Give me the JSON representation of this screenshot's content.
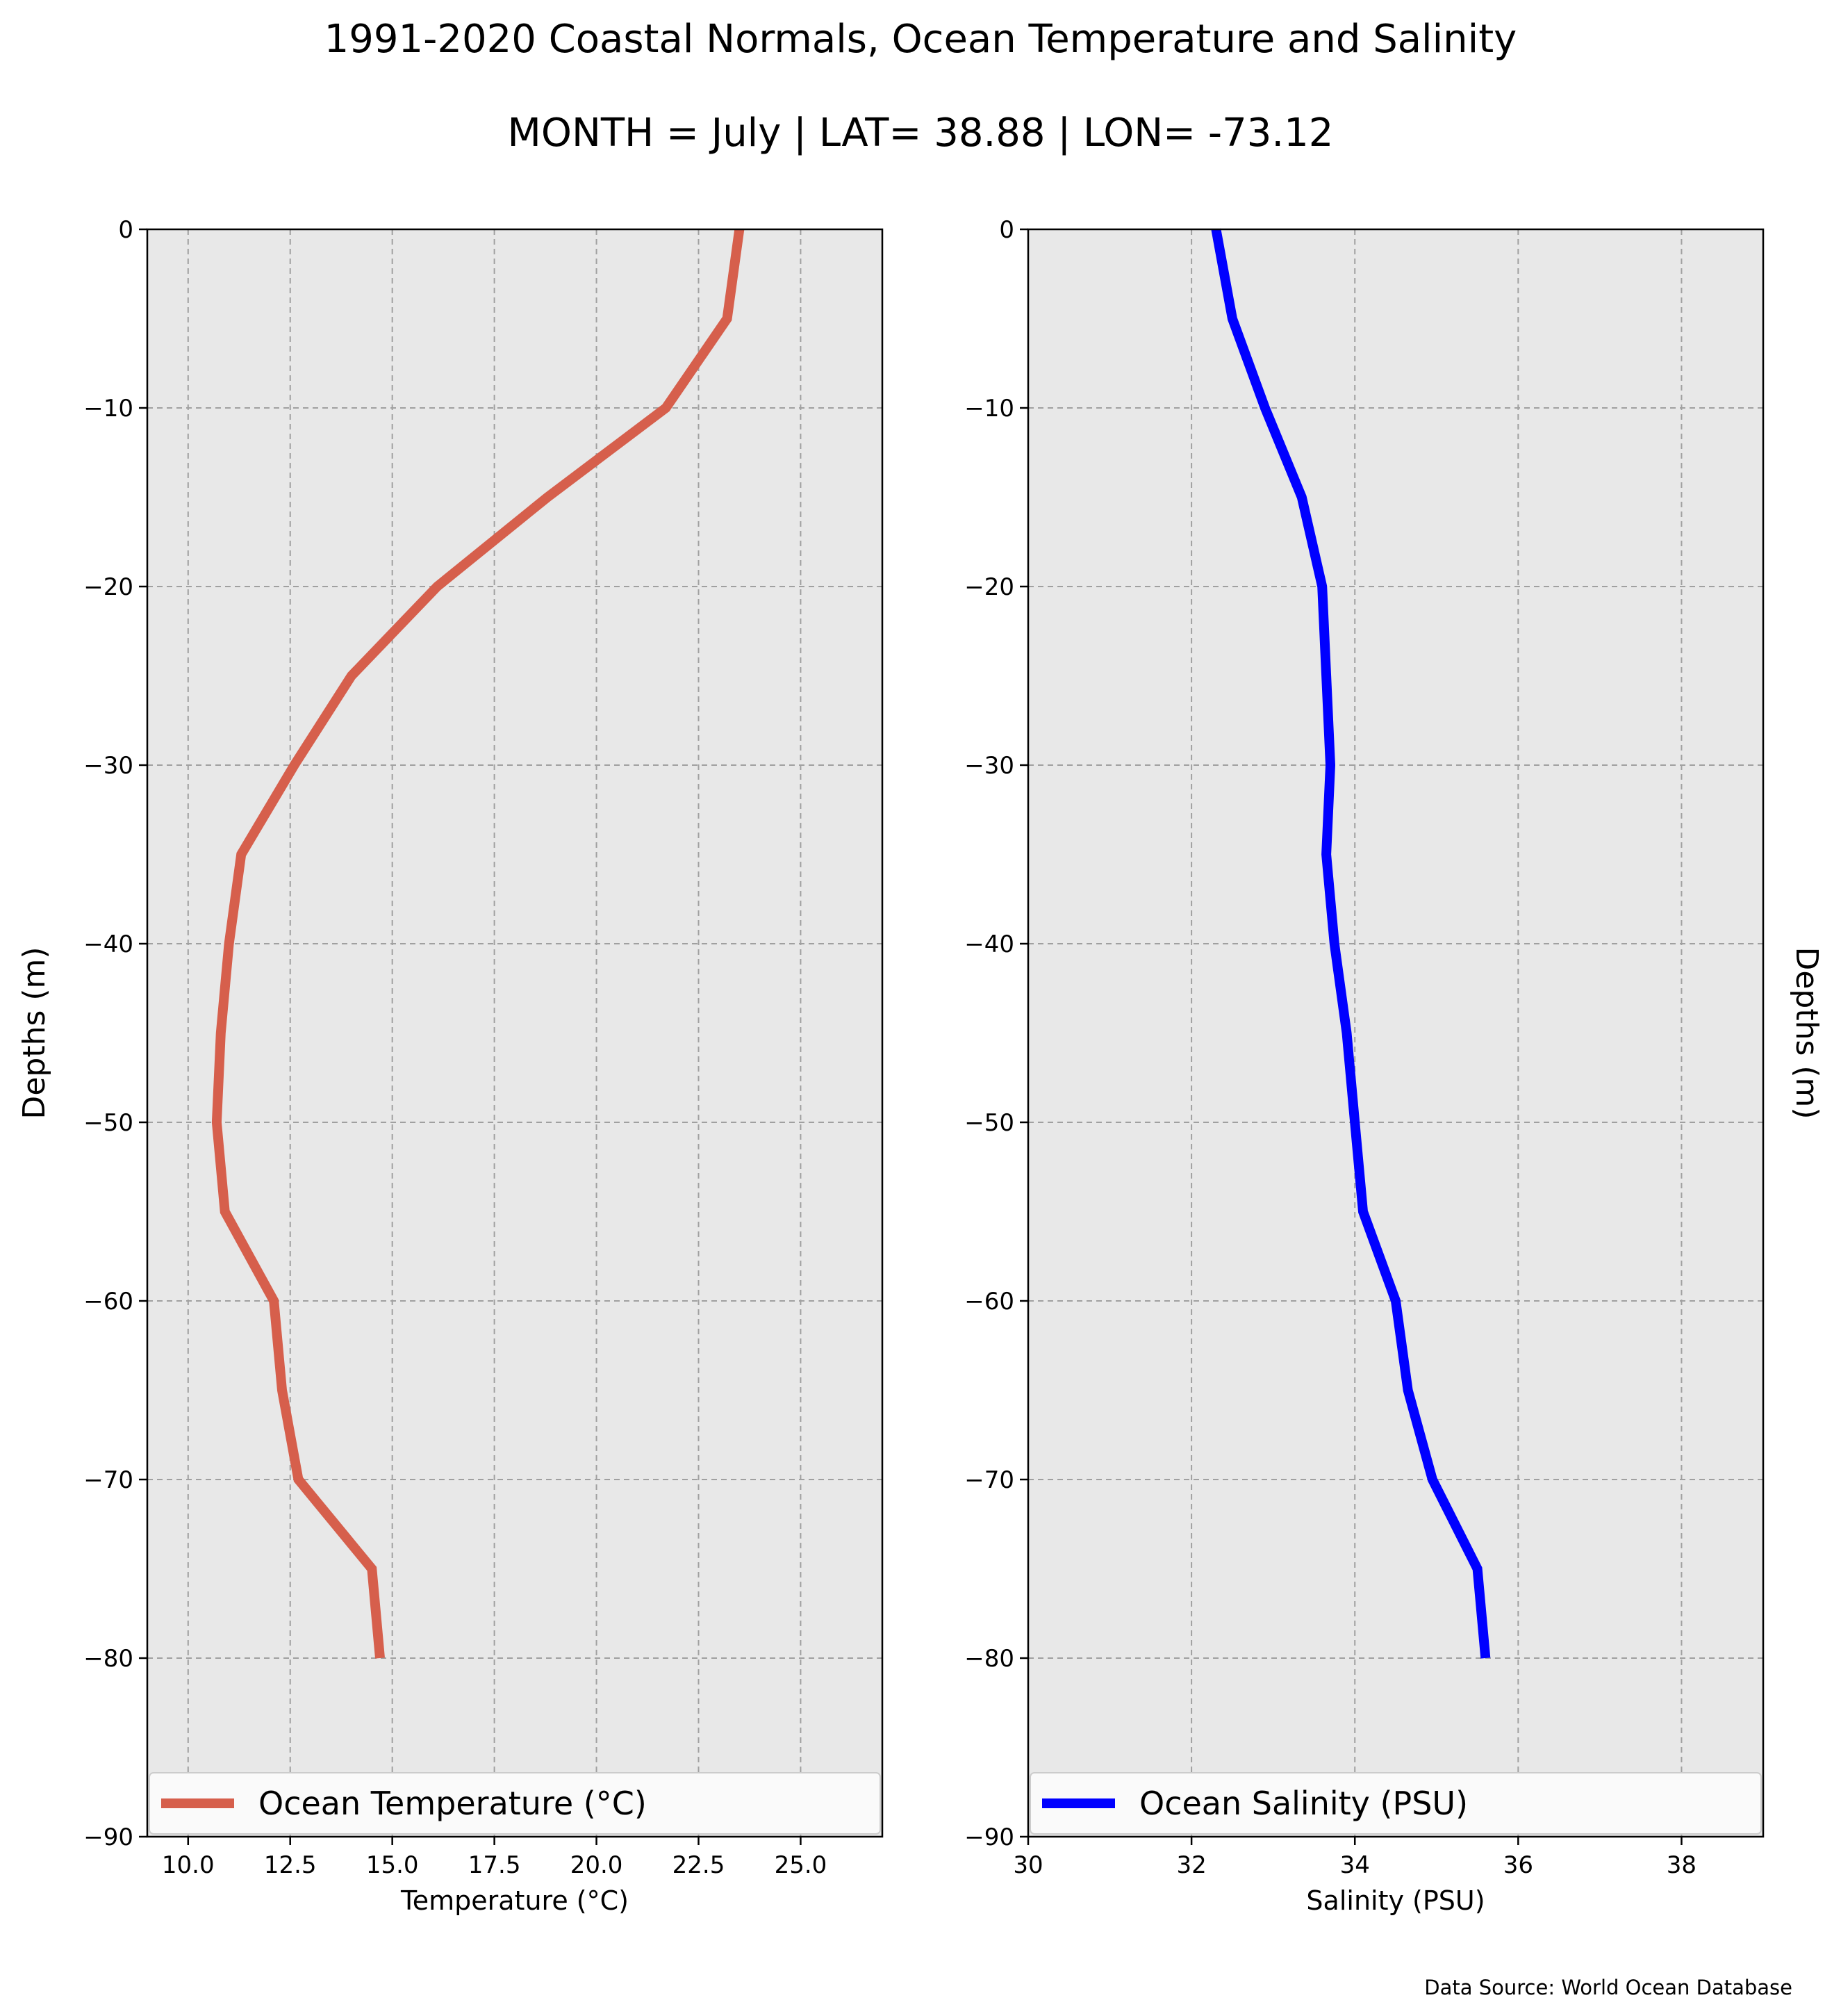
{
  "figure": {
    "title_line1": "1991-2020 Coastal Normals, Ocean Temperature and Salinity",
    "title_line2": "MONTH = July | LAT= 38.88 | LON= -73.12",
    "source_note": "Data Source: World Ocean Database",
    "background_color": "#e8e8e8"
  },
  "chart_data": [
    {
      "type": "line",
      "xlabel": "Temperature ($^\\circ$C)",
      "xlabel_display": "Temperature (°C)",
      "ylabel": "Depths (m)",
      "xlim": [
        9,
        27
      ],
      "ylim": [
        -90,
        0
      ],
      "x_ticks": [
        10.0,
        12.5,
        15.0,
        17.5,
        20.0,
        22.5,
        25.0
      ],
      "x_tick_labels": [
        "10.0",
        "12.5",
        "15.0",
        "17.5",
        "20.0",
        "22.5",
        "25.0"
      ],
      "y_ticks": [
        0,
        -10,
        -20,
        -30,
        -40,
        -50,
        -60,
        -70,
        -80,
        -90
      ],
      "y_tick_labels": [
        "0",
        "−10",
        "−20",
        "−30",
        "−40",
        "−50",
        "−60",
        "−70",
        "−80",
        "−90"
      ],
      "grid": true,
      "legend_position": "bottom",
      "series": [
        {
          "name": "Ocean Temperature ($^\\circ$C)",
          "name_display": "Ocean Temperature (°C)",
          "color": "#d65f4c",
          "x": [
            23.5,
            23.2,
            21.7,
            18.8,
            16.1,
            14.0,
            12.6,
            11.3,
            11.0,
            10.8,
            10.7,
            10.9,
            12.1,
            12.3,
            12.7,
            14.5,
            14.7
          ],
          "y": [
            0,
            -5,
            -10,
            -15,
            -20,
            -25,
            -30,
            -35,
            -40,
            -45,
            -50,
            -55,
            -60,
            -65,
            -70,
            -75,
            -80
          ]
        }
      ]
    },
    {
      "type": "line",
      "xlabel": "Salinity (PSU)",
      "ylabel": "Depths (m)",
      "xlim": [
        30,
        39
      ],
      "ylim": [
        -90,
        0
      ],
      "x_ticks": [
        30,
        32,
        34,
        36,
        38
      ],
      "x_tick_labels": [
        "30",
        "32",
        "34",
        "36",
        "38"
      ],
      "y_ticks": [
        0,
        -10,
        -20,
        -30,
        -40,
        -50,
        -60,
        -70,
        -80,
        -90
      ],
      "y_tick_labels": [
        "0",
        "−10",
        "−20",
        "−30",
        "−40",
        "−50",
        "−60",
        "−70",
        "−80",
        "−90"
      ],
      "grid": true,
      "legend_position": "bottom",
      "series": [
        {
          "name": "Ocean Salinity (PSU)",
          "color": "#0000ff",
          "x": [
            32.3,
            32.5,
            32.9,
            33.35,
            33.6,
            33.65,
            33.7,
            33.65,
            33.75,
            33.9,
            34.0,
            34.1,
            34.5,
            34.65,
            34.95,
            35.5,
            35.6
          ],
          "y": [
            0,
            -5,
            -10,
            -15,
            -20,
            -25,
            -30,
            -35,
            -40,
            -45,
            -50,
            -55,
            -60,
            -65,
            -70,
            -75,
            -80
          ]
        }
      ]
    }
  ]
}
